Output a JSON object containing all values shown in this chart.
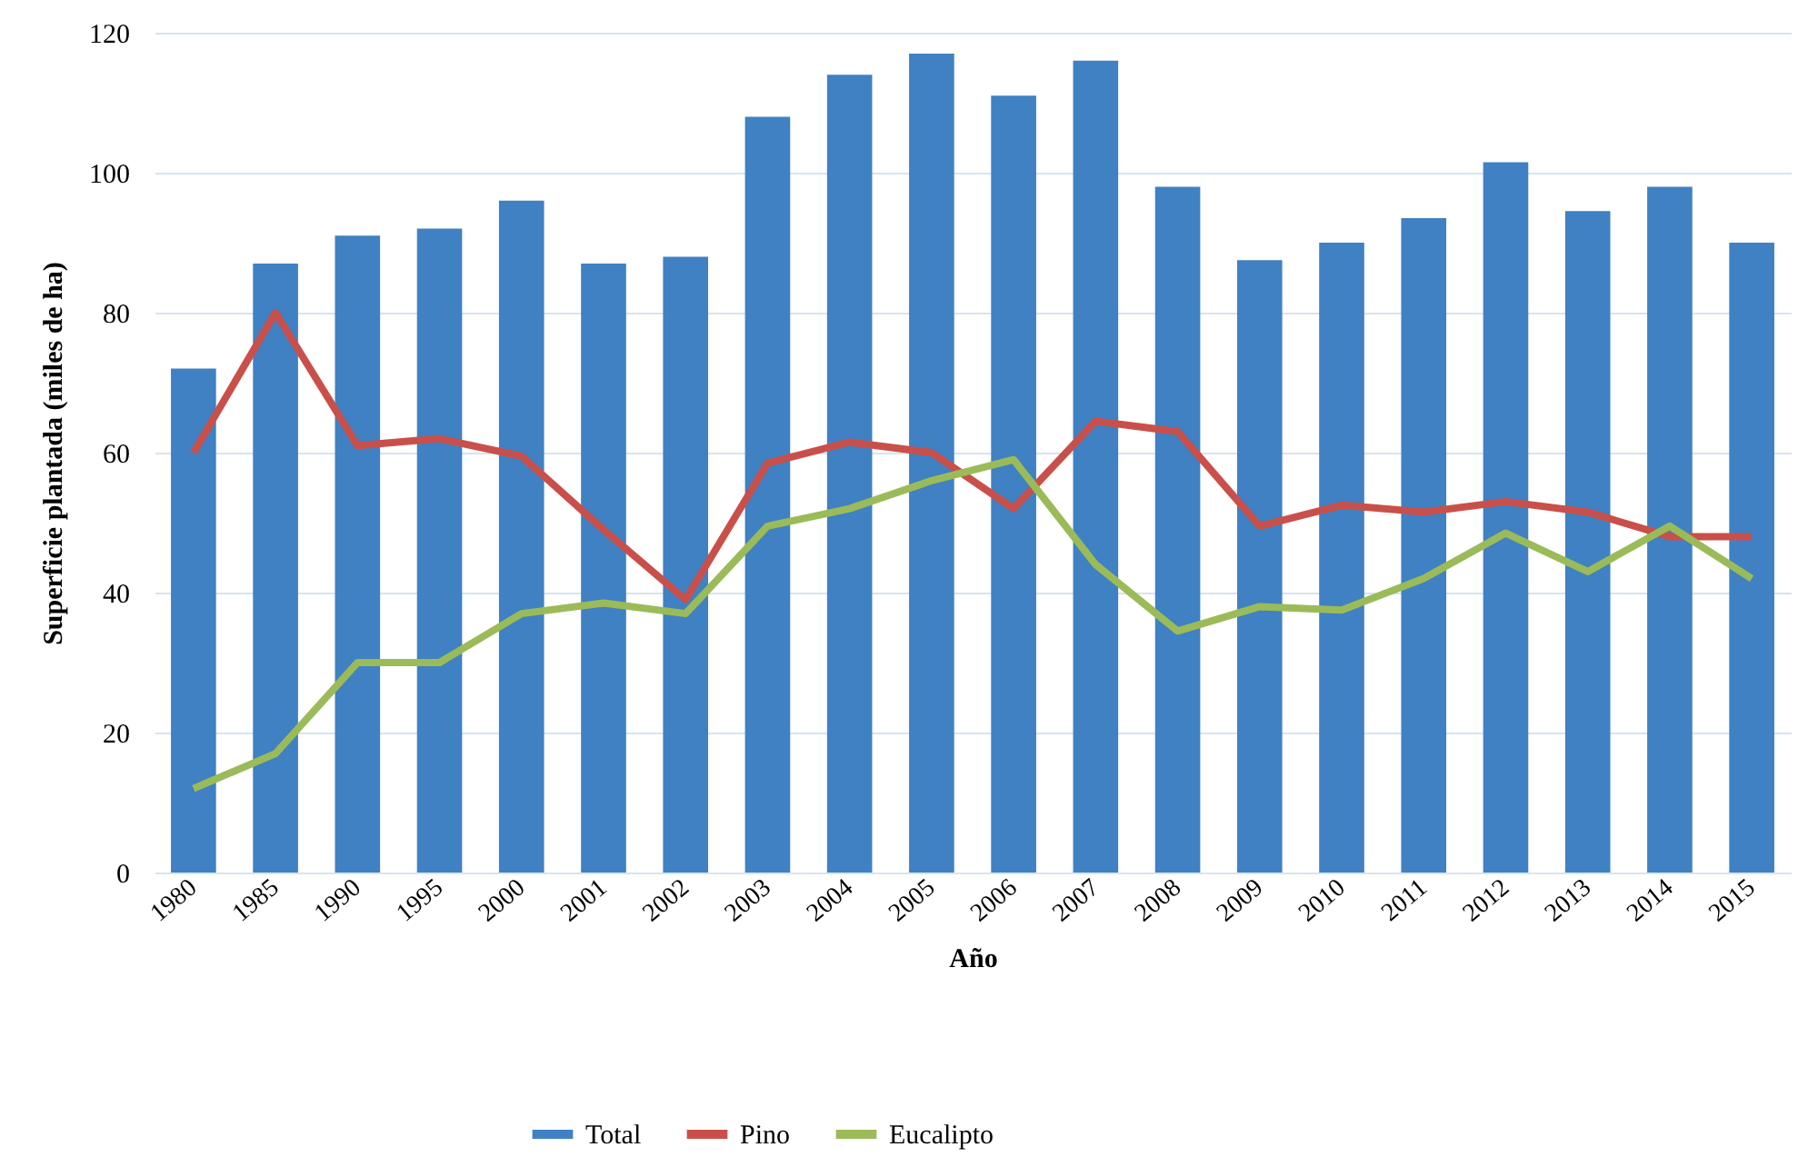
{
  "chart_data": {
    "type": "bar",
    "xlabel": "Año",
    "ylabel": "Superficie plantada (miles de ha)",
    "categories": [
      "1980",
      "1985",
      "1990",
      "1995",
      "2000",
      "2001",
      "2002",
      "2003",
      "2004",
      "2005",
      "2006",
      "2007",
      "2008",
      "2009",
      "2010",
      "2011",
      "2012",
      "2013",
      "2014",
      "2015"
    ],
    "series": [
      {
        "name": "Total",
        "color": "#3f81c3",
        "values": [
          72,
          87,
          91,
          92,
          96,
          87,
          88,
          108,
          114,
          117,
          111,
          116,
          98,
          87.5,
          90,
          93.5,
          101.5,
          94.5,
          98,
          90
        ]
      },
      {
        "name": "Pino",
        "type": "line",
        "color": "#c9504a",
        "values": [
          60,
          80,
          61,
          62,
          59.5,
          49,
          39,
          58.5,
          61.5,
          60,
          52,
          64.5,
          63,
          49.5,
          52.5,
          51.5,
          53,
          51.5,
          48,
          48
        ]
      },
      {
        "name": "Eucalipto",
        "type": "line",
        "color": "#9bbb59",
        "values": [
          12,
          17,
          30,
          30,
          37,
          38.5,
          37,
          49.5,
          52,
          56,
          59,
          44,
          34.5,
          38,
          37.5,
          42,
          48.5,
          43,
          49.5,
          42
        ]
      }
    ],
    "ylim": [
      0,
      120
    ],
    "yticks": [
      0,
      20,
      40,
      60,
      80,
      100,
      120
    ],
    "grid": "y",
    "legend": "bottom",
    "line_style": "solid"
  }
}
